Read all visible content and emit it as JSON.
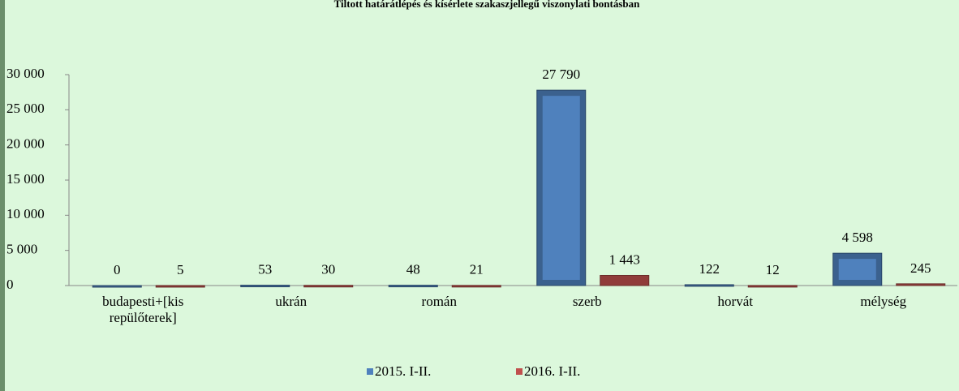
{
  "chart_data": {
    "type": "bar",
    "title": "Tiltott határátlépés és kísérlete szakaszjellegű viszonylati bontásban",
    "categories": [
      "budapesti+[kis repülőterek]",
      "ukrán",
      "román",
      "szerb",
      "horvát",
      "mélység"
    ],
    "series": [
      {
        "name": "2015. I-II.",
        "color": "#4f81bd",
        "values": [
          0,
          53,
          48,
          27790,
          122,
          4598
        ],
        "value_labels": [
          "0",
          "53",
          "48",
          "27 790",
          "122",
          "4 598"
        ]
      },
      {
        "name": "2016. I-II.",
        "color": "#c0504d",
        "values": [
          5,
          30,
          21,
          1443,
          12,
          245
        ],
        "value_labels": [
          "5",
          "30",
          "21",
          "1 443",
          "12",
          "245"
        ]
      }
    ],
    "ylim": [
      0,
      30000
    ],
    "yticks": [
      0,
      {
        "value": 5000,
        "label": "5 000"
      },
      {
        "value": 10000,
        "label": "10 000"
      },
      {
        "value": 15000,
        "label": "15 000"
      },
      {
        "value": 20000,
        "label": "20 000"
      },
      {
        "value": 25000,
        "label": "25 000"
      },
      {
        "value": 30000,
        "label": "30 000"
      }
    ]
  }
}
